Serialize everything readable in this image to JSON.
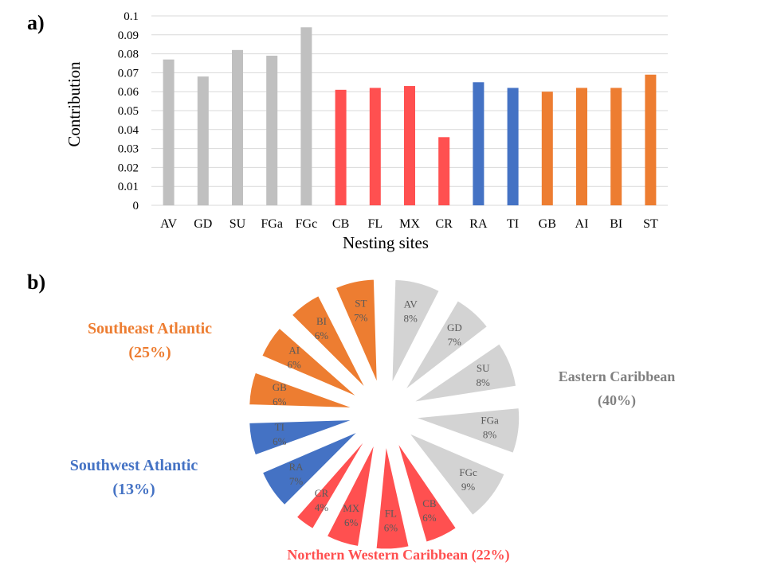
{
  "panel_a_label": "a)",
  "panel_b_label": "b)",
  "chart_data": [
    {
      "type": "bar",
      "categories": [
        "AV",
        "GD",
        "SU",
        "FGa",
        "FGc",
        "CB",
        "FL",
        "MX",
        "CR",
        "RA",
        "TI",
        "GB",
        "AI",
        "BI",
        "ST"
      ],
      "values": [
        0.077,
        0.068,
        0.082,
        0.079,
        0.094,
        0.061,
        0.062,
        0.063,
        0.036,
        0.065,
        0.062,
        0.06,
        0.062,
        0.062,
        0.069
      ],
      "colors": [
        "#c0c0c0",
        "#c0c0c0",
        "#c0c0c0",
        "#c0c0c0",
        "#c0c0c0",
        "#ff5050",
        "#ff5050",
        "#ff5050",
        "#ff5050",
        "#4472c4",
        "#4472c4",
        "#ed7d31",
        "#ed7d31",
        "#ed7d31",
        "#ed7d31"
      ],
      "xlabel": "Nesting sites",
      "ylabel": "Contribution",
      "ylim": [
        0,
        0.1
      ],
      "yticks": [
        "0",
        "0.01",
        "0.02",
        "0.03",
        "0.04",
        "0.05",
        "0.06",
        "0.07",
        "0.08",
        "0.09",
        "0.1"
      ],
      "grid": true
    },
    {
      "type": "pie",
      "labels": [
        "AV",
        "GD",
        "SU",
        "FGa",
        "FGc",
        "CB",
        "FL",
        "MX",
        "CR",
        "RA",
        "TI",
        "GB",
        "AI",
        "BI",
        "ST"
      ],
      "percent_labels": [
        "8%",
        "7%",
        "8%",
        "8%",
        "9%",
        "6%",
        "6%",
        "6%",
        "4%",
        "7%",
        "6%",
        "6%",
        "6%",
        "6%",
        "7%"
      ],
      "values": [
        8,
        7,
        8,
        8,
        9,
        6,
        6,
        6,
        4,
        7,
        6,
        6,
        6,
        6,
        7
      ],
      "colors": [
        "#d3d3d3",
        "#d3d3d3",
        "#d3d3d3",
        "#d3d3d3",
        "#d3d3d3",
        "#ff5050",
        "#ff5050",
        "#ff5050",
        "#ff5050",
        "#4472c4",
        "#4472c4",
        "#ed7d31",
        "#ed7d31",
        "#ed7d31",
        "#ed7d31"
      ],
      "label_colors": [
        "#595959",
        "#595959",
        "#595959",
        "#595959",
        "#595959",
        "#595959",
        "#595959",
        "#595959",
        "#595959",
        "#595959",
        "#595959",
        "#595959",
        "#595959",
        "#595959",
        "#595959"
      ],
      "regions": [
        {
          "line1": "Southeast Atlantic",
          "line2": "(25%)",
          "color": "#ed7d31"
        },
        {
          "line1": "Eastern Caribbean",
          "line2": "(40%)",
          "color": "#808080"
        },
        {
          "line1": "Southwest Atlantic",
          "line2": "(13%)",
          "color": "#4472c4"
        },
        {
          "line1": "Northern Western Caribbean (22%)",
          "line2": "",
          "color": "#ff5050"
        }
      ]
    }
  ]
}
